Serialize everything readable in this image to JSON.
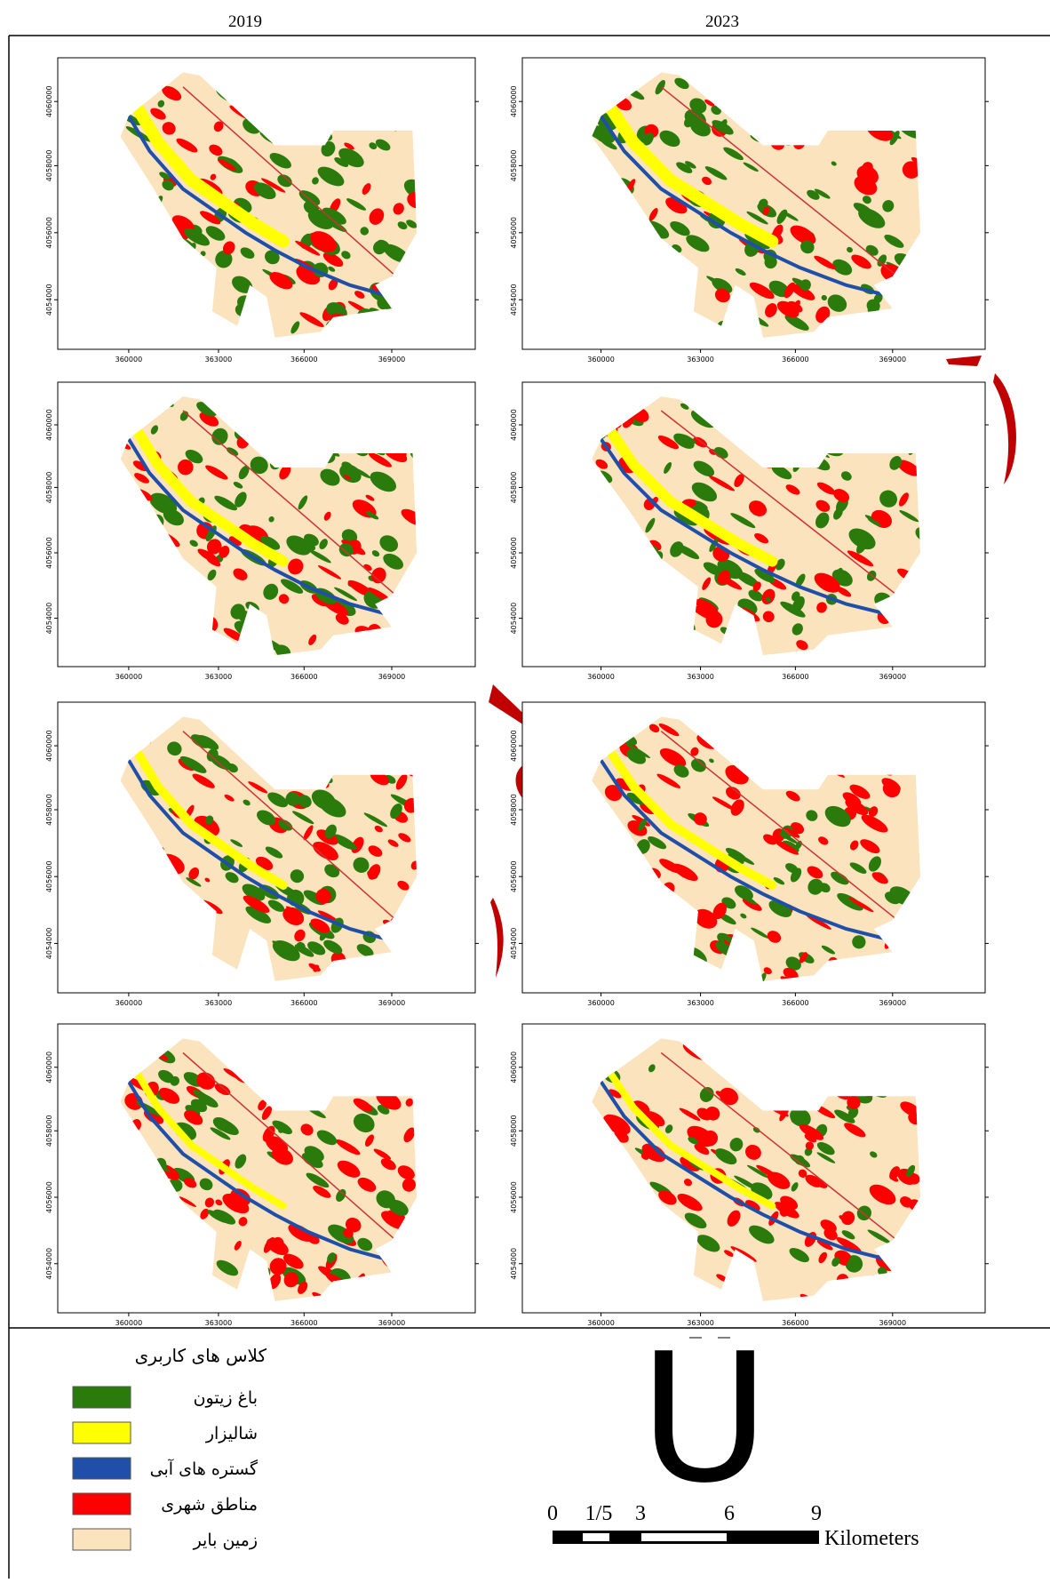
{
  "headers": [
    "2019",
    "2023"
  ],
  "axes": {
    "x_labels": [
      "360000",
      "363000",
      "366000",
      "369000"
    ],
    "y_labels": [
      "4054000",
      "4056000",
      "4058000",
      "4060000"
    ]
  },
  "legend": {
    "title": "کلاس های کاربری",
    "items": [
      {
        "label": "باغ زیتون",
        "color": "#2a7a0c"
      },
      {
        "label": "شالیزار",
        "color": "#ffff00"
      },
      {
        "label": "گستره های آبی",
        "color": "#1f4fa8"
      },
      {
        "label": "مناطق شهری",
        "color": "#ff0000"
      },
      {
        "label": "زمین بایر",
        "color": "#fbe3bd"
      }
    ]
  },
  "north_arrow": "U",
  "scale_bar": {
    "labels": [
      "0",
      "1/5",
      "3",
      "6",
      "9"
    ],
    "unit": "Kilometers"
  }
}
